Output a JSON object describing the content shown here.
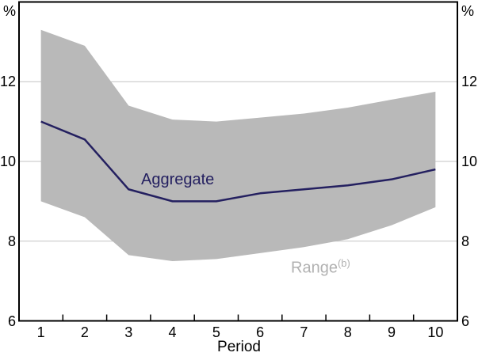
{
  "chart_data": {
    "type": "line",
    "title": "",
    "xlabel": "Period",
    "y_unit_left": "%",
    "y_unit_right": "%",
    "x": [
      1,
      2,
      3,
      4,
      5,
      6,
      7,
      8,
      9,
      10
    ],
    "ylim": [
      6,
      14
    ],
    "yticks": [
      6,
      8,
      10,
      12
    ],
    "gridlines": [
      8,
      10,
      12
    ],
    "grid": true,
    "legend_position": "inline-annotations",
    "axis_color": "#000000",
    "gridline_color": "#c3c3c3",
    "series": [
      {
        "name": "Aggregate",
        "type": "line",
        "color": "#242060",
        "values": [
          11.0,
          10.55,
          9.3,
          9.0,
          9.0,
          9.2,
          9.3,
          9.4,
          9.55,
          9.8
        ]
      },
      {
        "name": "Range",
        "name_superscript": "(b)",
        "type": "band",
        "color": "#b9b9b9",
        "label_color": "#b1b1b1",
        "upper": [
          13.3,
          12.9,
          11.4,
          11.05,
          11.0,
          11.1,
          11.2,
          11.35,
          11.55,
          11.75
        ],
        "lower": [
          9.0,
          8.6,
          7.65,
          7.5,
          7.55,
          7.7,
          7.85,
          8.05,
          8.4,
          8.85
        ]
      }
    ]
  }
}
